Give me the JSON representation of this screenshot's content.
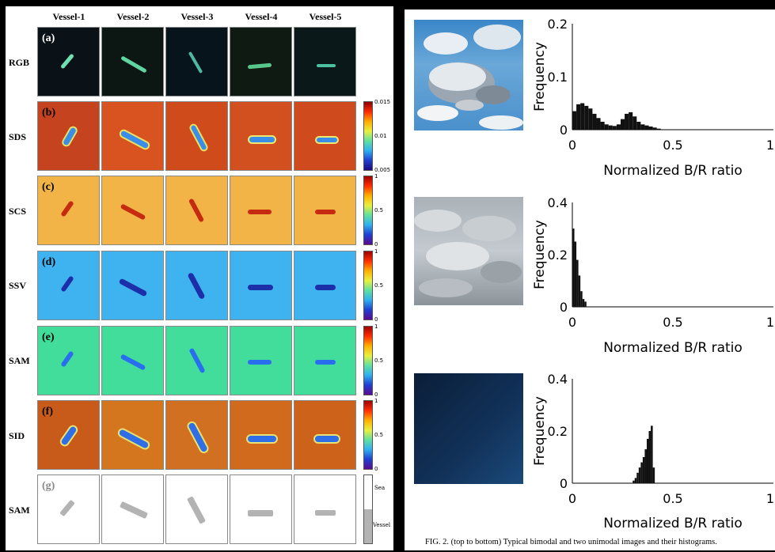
{
  "left_figure": {
    "columns": [
      "Vessel-1",
      "Vessel-2",
      "Vessel-3",
      "Vessel-4",
      "Vessel-5"
    ],
    "rows": [
      {
        "letter": "(a)",
        "label": "RGB"
      },
      {
        "letter": "(b)",
        "label": "SDS"
      },
      {
        "letter": "(c)",
        "label": "SCS"
      },
      {
        "letter": "(d)",
        "label": "SSV"
      },
      {
        "letter": "(e)",
        "label": "SAM"
      },
      {
        "letter": "(f)",
        "label": "SID"
      },
      {
        "letter": "(g)",
        "label": "SAM"
      }
    ],
    "colorbars": {
      "sds": {
        "top": "0.015",
        "mid": "0.01",
        "bottom": "0.005"
      },
      "scs": {
        "top": "1",
        "mid": "0.5",
        "bottom": "0"
      },
      "ssv": {
        "top": "1",
        "mid": "0.5",
        "bottom": "0"
      },
      "sam": {
        "top": "1",
        "mid": "0.5",
        "bottom": "0"
      },
      "sid": {
        "top": "1",
        "mid": "0.5",
        "bottom": "0"
      },
      "binary": {
        "top": "Sea",
        "bottom": "Vessel"
      }
    },
    "colors": {
      "rgb_bg": "#0b1217",
      "sds_bg": "#c5431e",
      "scs_bg": "#f2b447",
      "ssv_bg": "#3fb3f0",
      "sam_bg": "#42dd9a",
      "sid_bg": "#c85a1a",
      "mask_vessel": "#b3b3b3"
    }
  },
  "right_figure": {
    "charts": [
      {
        "ylabel": "Frequency",
        "xlabel": "Normalized B/R ratio",
        "yticks": [
          "0",
          "0.1",
          "0.2"
        ],
        "xticks": [
          "0",
          "0.5",
          "1"
        ]
      },
      {
        "ylabel": "Frequency",
        "xlabel": "Normalized B/R ratio",
        "yticks": [
          "0",
          "0.2",
          "0.4"
        ],
        "xticks": [
          "0",
          "0.5",
          "1"
        ]
      },
      {
        "ylabel": "Frequency",
        "xlabel": "Normalized B/R ratio",
        "yticks": [
          "0",
          "0.2",
          "0.4"
        ],
        "xticks": [
          "0",
          "0.5",
          "1"
        ]
      }
    ],
    "caption": "FIG. 2. (top to bottom) Typical bimodal and two unimodal images and their histograms."
  },
  "chart_data": [
    {
      "type": "bar",
      "xlabel": "Normalized B/R ratio",
      "ylabel": "Frequency",
      "xlim": [
        0,
        1
      ],
      "ylim": [
        0,
        0.2
      ],
      "x": [
        0.0,
        0.02,
        0.04,
        0.06,
        0.08,
        0.1,
        0.12,
        0.14,
        0.16,
        0.18,
        0.2,
        0.22,
        0.24,
        0.26,
        0.28,
        0.3,
        0.32,
        0.34,
        0.36,
        0.38,
        0.4,
        0.42
      ],
      "values": [
        0.035,
        0.048,
        0.05,
        0.045,
        0.04,
        0.03,
        0.022,
        0.015,
        0.01,
        0.008,
        0.007,
        0.01,
        0.02,
        0.03,
        0.033,
        0.025,
        0.015,
        0.01,
        0.008,
        0.006,
        0.004,
        0.002
      ]
    },
    {
      "type": "bar",
      "xlabel": "Normalized B/R ratio",
      "ylabel": "Frequency",
      "xlim": [
        0,
        1
      ],
      "ylim": [
        0,
        0.4
      ],
      "x": [
        0.0,
        0.01,
        0.02,
        0.03,
        0.04,
        0.05,
        0.06
      ],
      "values": [
        0.3,
        0.25,
        0.18,
        0.12,
        0.06,
        0.03,
        0.02
      ]
    },
    {
      "type": "bar",
      "xlabel": "Normalized B/R ratio",
      "ylabel": "Frequency",
      "xlim": [
        0,
        1
      ],
      "ylim": [
        0,
        0.4
      ],
      "x": [
        0.3,
        0.31,
        0.32,
        0.33,
        0.34,
        0.35,
        0.36,
        0.37,
        0.38,
        0.39,
        0.4
      ],
      "values": [
        0.01,
        0.02,
        0.04,
        0.06,
        0.08,
        0.1,
        0.13,
        0.17,
        0.2,
        0.22,
        0.06
      ]
    }
  ]
}
